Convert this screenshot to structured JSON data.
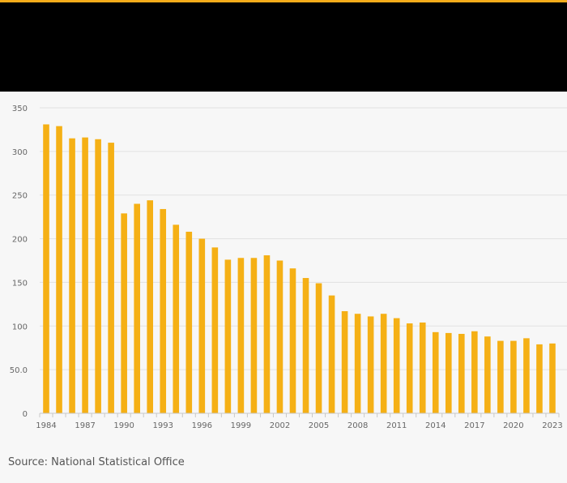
{
  "colors": {
    "bar": "#f5b015",
    "accent": "#f5ac1a",
    "header_bg": "#000000",
    "grid": "#e2e2e2",
    "axis_text": "#666666"
  },
  "chart_data": {
    "type": "bar",
    "title": "",
    "xlabel": "",
    "ylabel": "",
    "ylim": [
      0,
      350
    ],
    "yticks": [
      0,
      50,
      100,
      150,
      200,
      250,
      300,
      350
    ],
    "ytick_labels": [
      "0",
      "50.0",
      "100",
      "150",
      "200",
      "250",
      "300",
      "350"
    ],
    "categories": [
      "1984",
      "1985",
      "1986",
      "1987",
      "1988",
      "1989",
      "1990",
      "1991",
      "1992",
      "1993",
      "1994",
      "1995",
      "1996",
      "1997",
      "1998",
      "1999",
      "2000",
      "2001",
      "2002",
      "2003",
      "2004",
      "2005",
      "2006",
      "2007",
      "2008",
      "2009",
      "2010",
      "2011",
      "2012",
      "2013",
      "2014",
      "2015",
      "2016",
      "2017",
      "2018",
      "2019",
      "2020",
      "2021",
      "2022",
      "2023"
    ],
    "xtick_labels": [
      "1984",
      "1987",
      "1990",
      "1993",
      "1996",
      "1999",
      "2002",
      "2005",
      "2008",
      "2011",
      "2014",
      "2017",
      "2020",
      "2023"
    ],
    "values": [
      331,
      329,
      315,
      316,
      314,
      310,
      229,
      240,
      244,
      234,
      216,
      208,
      200,
      190,
      176,
      178,
      178,
      181,
      175,
      166,
      155,
      149,
      135,
      117,
      114,
      111,
      114,
      109,
      103,
      104,
      93,
      92,
      91,
      94,
      88,
      83,
      83,
      86,
      79,
      80
    ]
  },
  "footer": {
    "source": "Source: National Statistical Office"
  }
}
